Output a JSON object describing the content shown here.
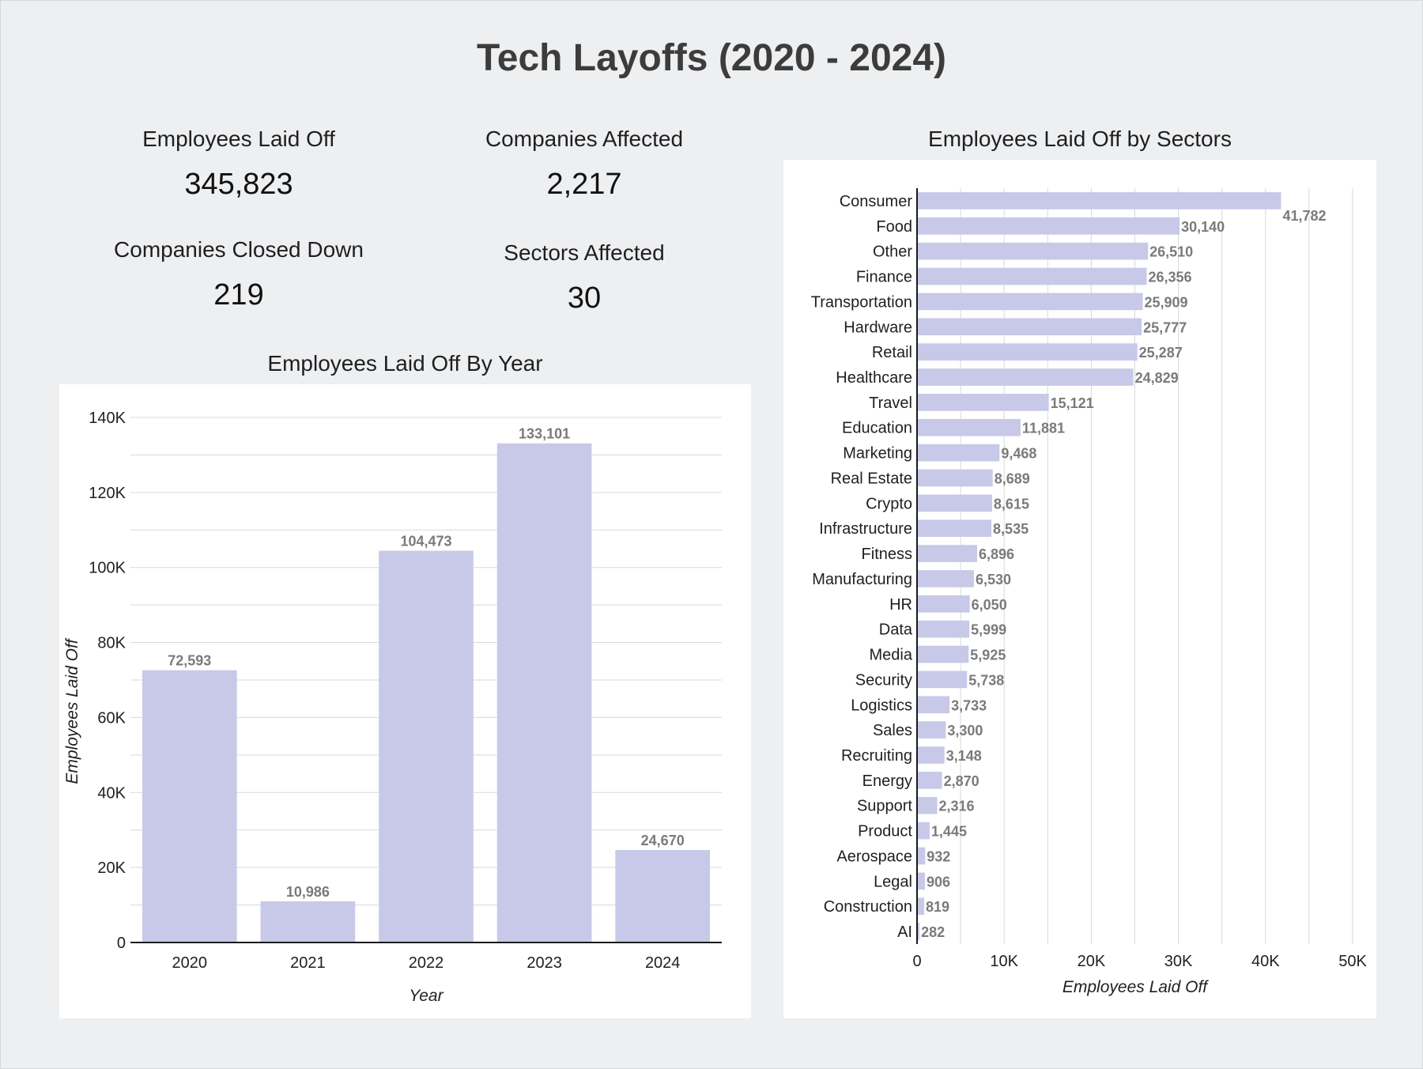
{
  "title": "Tech Layoffs (2020 - 2024)",
  "kpis": {
    "employees_laid_off": {
      "label": "Employees Laid Off",
      "value": "345,823"
    },
    "companies_affected": {
      "label": "Companies Affected",
      "value": "2,217"
    },
    "companies_closed": {
      "label": "Companies Closed Down",
      "value": "219"
    },
    "sectors_affected": {
      "label": "Sectors Affected",
      "value": "30"
    }
  },
  "colors": {
    "bar": "#c8c9e8",
    "value_label": "#7a7a7a",
    "grid": "#d9d9d9",
    "axis": "#1a1a1a",
    "background": "#eeeff1",
    "panel": "#ffffff"
  },
  "chart_data": [
    {
      "type": "bar",
      "title": "Employees Laid Off By Year",
      "categories": [
        "2020",
        "2021",
        "2022",
        "2023",
        "2024"
      ],
      "values": [
        72593,
        10986,
        104473,
        133101,
        24670
      ],
      "value_labels": [
        "72,593",
        "10,986",
        "104,473",
        "133,101",
        "24,670"
      ],
      "xlabel": "Year",
      "ylabel": "Employees Laid Off",
      "ylim": [
        0,
        140000
      ],
      "yticks": [
        0,
        20000,
        40000,
        60000,
        80000,
        100000,
        120000,
        140000
      ],
      "ytick_labels": [
        "0",
        "20K",
        "40K",
        "60K",
        "80K",
        "100K",
        "120K",
        "140K"
      ],
      "grid": true
    },
    {
      "type": "bar",
      "orientation": "horizontal",
      "title": "Employees Laid Off by Sectors",
      "categories": [
        "Consumer",
        "Food",
        "Other",
        "Finance",
        "Transportation",
        "Hardware",
        "Retail",
        "Healthcare",
        "Travel",
        "Education",
        "Marketing",
        "Real Estate",
        "Crypto",
        "Infrastructure",
        "Fitness",
        "Manufacturing",
        "HR",
        "Data",
        "Media",
        "Security",
        "Logistics",
        "Sales",
        "Recruiting",
        "Energy",
        "Support",
        "Product",
        "Aerospace",
        "Legal",
        "Construction",
        "AI"
      ],
      "values": [
        41782,
        30140,
        26510,
        26356,
        25909,
        25777,
        25287,
        24829,
        15121,
        11881,
        9468,
        8689,
        8615,
        8535,
        6896,
        6530,
        6050,
        5999,
        5925,
        5738,
        3733,
        3300,
        3148,
        2870,
        2316,
        1445,
        932,
        906,
        819,
        282
      ],
      "value_labels": [
        "41,782",
        "30,140",
        "26,510",
        "26,356",
        "25,909",
        "25,777",
        "25,287",
        "24,829",
        "15,121",
        "11,881",
        "9,468",
        "8,689",
        "8,615",
        "8,535",
        "6,896",
        "6,530",
        "6,050",
        "5,999",
        "5,925",
        "5,738",
        "3,733",
        "3,300",
        "3,148",
        "2,870",
        "2,316",
        "1,445",
        "932",
        "906",
        "819",
        "282"
      ],
      "xlabel": "Employees Laid Off",
      "ylabel": "",
      "xlim": [
        0,
        50000
      ],
      "xticks": [
        0,
        10000,
        20000,
        30000,
        40000,
        50000
      ],
      "xtick_labels": [
        "0",
        "10K",
        "20K",
        "30K",
        "40K",
        "50K"
      ],
      "grid": true
    }
  ]
}
